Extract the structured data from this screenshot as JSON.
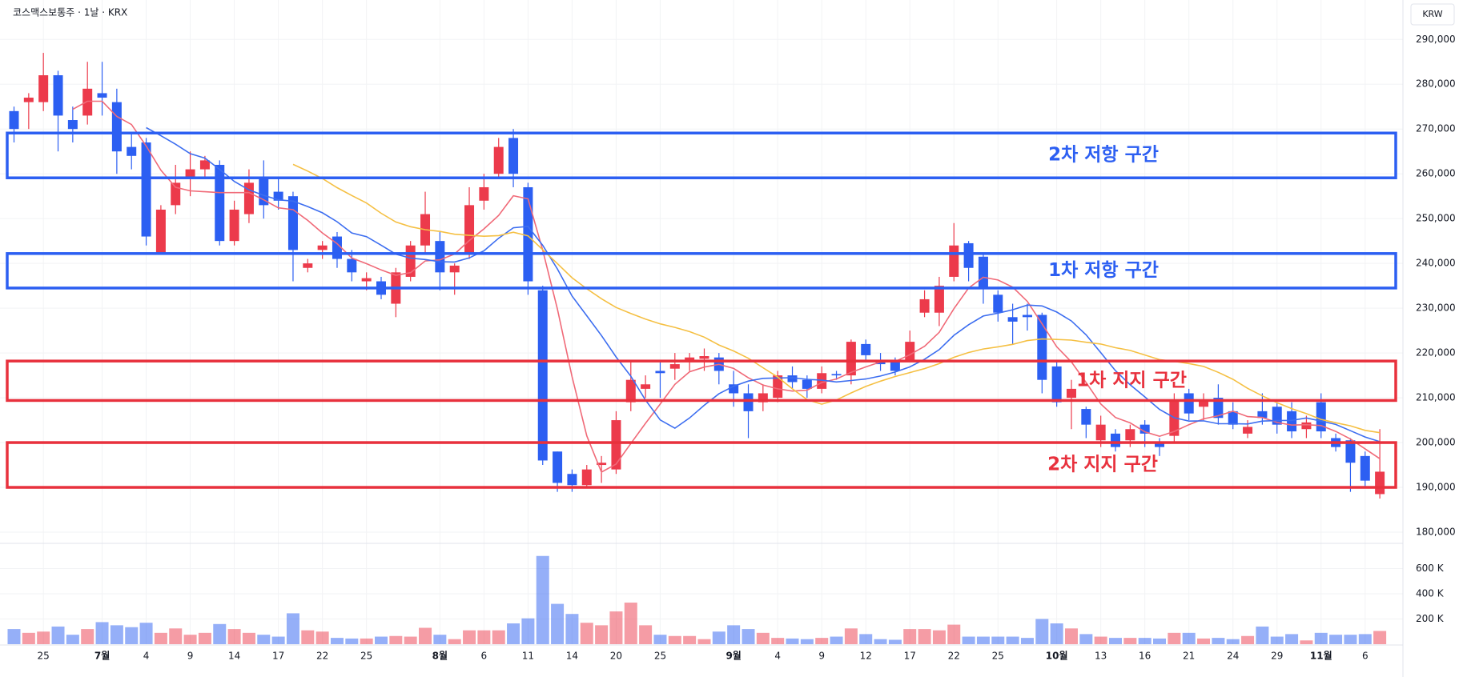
{
  "chart_data": {
    "type": "candlestick",
    "title": "코스맥스보통주 · 1날 · KRX",
    "currency": "KRW",
    "up_color": "#ec3a4b",
    "down_color": "#2c5ff2",
    "grid": true,
    "categories": [
      null,
      null,
      "25",
      null,
      null,
      null,
      "7월",
      null,
      null,
      "4",
      null,
      null,
      "9",
      null,
      null,
      "14",
      null,
      null,
      "17",
      null,
      null,
      "22",
      null,
      null,
      "25",
      null,
      null,
      null,
      null,
      "8월",
      null,
      null,
      "6",
      null,
      null,
      "11",
      null,
      null,
      "14",
      null,
      null,
      "20",
      null,
      null,
      "25",
      null,
      null,
      null,
      null,
      "9월",
      null,
      null,
      "4",
      null,
      null,
      "9",
      null,
      null,
      "12",
      null,
      null,
      "17",
      null,
      null,
      "22",
      null,
      null,
      "25",
      null,
      null,
      null,
      "10월",
      null,
      null,
      "13",
      null,
      null,
      "16",
      null,
      null,
      "21",
      null,
      null,
      "24",
      null,
      null,
      "29",
      null,
      null,
      "11월",
      null,
      null,
      "6",
      null
    ],
    "open": [
      274000,
      276000,
      276000,
      282000,
      272000,
      273000,
      278000,
      276000,
      266000,
      267000,
      242000,
      253000,
      259000,
      261000,
      262000,
      245000,
      251000,
      259000,
      256000,
      255000,
      239000,
      243000,
      246000,
      241000,
      236000,
      236000,
      231000,
      237000,
      244000,
      245000,
      238000,
      242000,
      254000,
      260000,
      268000,
      257000,
      234000,
      198000,
      193000,
      190500,
      195000,
      194000,
      209000,
      212000,
      216000,
      216500,
      218500,
      218700,
      219000,
      213000,
      211000,
      209000,
      210000,
      215000,
      214000,
      212000,
      215300,
      215000,
      222000,
      218500,
      218000,
      218500,
      229000,
      229000,
      237000,
      244500,
      241500,
      233000,
      228000,
      228500,
      228500,
      217000,
      210000,
      207500,
      200500,
      202000,
      200500,
      204000,
      200000,
      201500,
      211000,
      208000,
      210000,
      207000,
      202000,
      207000,
      208000,
      207000,
      203000,
      209000,
      201000,
      200500,
      197000,
      188500
    ],
    "high": [
      275000,
      278000,
      287000,
      283000,
      275000,
      285000,
      285000,
      279000,
      269000,
      268000,
      253000,
      262000,
      265000,
      264000,
      263000,
      254000,
      261000,
      263000,
      259000,
      256000,
      241000,
      245000,
      247000,
      243000,
      238000,
      237000,
      239000,
      245000,
      256000,
      247000,
      240000,
      257000,
      260000,
      268000,
      270000,
      258000,
      235000,
      198000,
      194000,
      195000,
      197000,
      207000,
      218000,
      215000,
      218000,
      220000,
      220000,
      221000,
      220000,
      216000,
      213000,
      213000,
      216000,
      217000,
      215000,
      217000,
      216000,
      223000,
      223000,
      220000,
      219000,
      225000,
      234000,
      237000,
      249000,
      245000,
      242000,
      234000,
      231000,
      231000,
      229000,
      218000,
      214000,
      208000,
      206000,
      203000,
      204000,
      205000,
      201000,
      211000,
      212000,
      211000,
      213000,
      209000,
      205000,
      211000,
      209000,
      209000,
      206000,
      211000,
      202000,
      201000,
      198000,
      203000
    ],
    "low": [
      267000,
      270000,
      274000,
      265000,
      267000,
      271000,
      273000,
      260000,
      261000,
      244000,
      242000,
      251000,
      255000,
      259000,
      244000,
      244000,
      249000,
      250000,
      252000,
      236000,
      238000,
      241000,
      239000,
      236000,
      234000,
      232000,
      228000,
      236000,
      242000,
      234000,
      233000,
      241000,
      252000,
      259000,
      257000,
      233000,
      195000,
      189000,
      189000,
      190000,
      191000,
      193000,
      207000,
      210000,
      210000,
      214000,
      216000,
      216000,
      213000,
      208000,
      201000,
      207000,
      209000,
      212000,
      210000,
      211000,
      214000,
      213000,
      218000,
      216000,
      215000,
      218000,
      228000,
      226000,
      236000,
      236000,
      231000,
      227000,
      222000,
      225000,
      211000,
      208000,
      203000,
      201000,
      199000,
      198000,
      199000,
      199000,
      197000,
      200000,
      205000,
      205000,
      204000,
      203000,
      201000,
      204000,
      202000,
      201000,
      201000,
      201000,
      198000,
      189000,
      190000,
      187500
    ],
    "close": [
      270000,
      277000,
      282000,
      273000,
      270000,
      279000,
      277000,
      265000,
      264000,
      246000,
      252000,
      258000,
      261000,
      263000,
      245000,
      252000,
      258000,
      253000,
      254000,
      243000,
      240000,
      244000,
      241000,
      238000,
      236700,
      233000,
      238000,
      244000,
      251000,
      238000,
      239500,
      253000,
      257000,
      266000,
      260000,
      236000,
      196000,
      191000,
      190500,
      194000,
      195500,
      205000,
      214000,
      213000,
      215500,
      217500,
      219000,
      219300,
      216000,
      211000,
      207000,
      211000,
      215000,
      213500,
      212000,
      215500,
      215000,
      222500,
      219500,
      217500,
      216000,
      222500,
      232000,
      235000,
      244000,
      239000,
      234500,
      229000,
      227000,
      228000,
      214000,
      209000,
      212000,
      204000,
      204000,
      199000,
      203000,
      202000,
      199000,
      209500,
      206500,
      209500,
      205500,
      204000,
      203500,
      205500,
      204000,
      202500,
      204500,
      202500,
      199000,
      195500,
      191500,
      193500
    ],
    "volume": [
      120000,
      90000,
      100000,
      140000,
      75000,
      120000,
      175000,
      150000,
      135000,
      170000,
      90000,
      125000,
      75000,
      90000,
      160000,
      120000,
      90000,
      75000,
      60000,
      245000,
      110000,
      100000,
      50000,
      45000,
      45000,
      60000,
      65000,
      60000,
      130000,
      75000,
      40000,
      110000,
      110000,
      110000,
      165000,
      205000,
      700000,
      320000,
      240000,
      170000,
      150000,
      260000,
      330000,
      150000,
      75000,
      65000,
      65000,
      40000,
      100000,
      150000,
      120000,
      90000,
      50000,
      45000,
      40000,
      50000,
      60000,
      125000,
      80000,
      40000,
      35000,
      120000,
      120000,
      110000,
      155000,
      60000,
      60000,
      60000,
      60000,
      50000,
      200000,
      165000,
      125000,
      80000,
      60000,
      50000,
      50000,
      50000,
      45000,
      90000,
      90000,
      45000,
      50000,
      40000,
      65000,
      140000,
      60000,
      80000,
      30000,
      90000,
      75000,
      75000,
      80000,
      105000
    ],
    "ylim": [
      177500,
      298800
    ],
    "yticks": [
      {
        "value": 180000,
        "label": "180,000"
      },
      {
        "value": 190000,
        "label": "190,000"
      },
      {
        "value": 200000,
        "label": "200,000"
      },
      {
        "value": 210000,
        "label": "210,000"
      },
      {
        "value": 220000,
        "label": "220,000"
      },
      {
        "value": 230000,
        "label": "230,000"
      },
      {
        "value": 240000,
        "label": "240,000"
      },
      {
        "value": 250000,
        "label": "250,000"
      },
      {
        "value": 260000,
        "label": "260,000"
      },
      {
        "value": 270000,
        "label": "270,000"
      },
      {
        "value": 280000,
        "label": "280,000"
      },
      {
        "value": 290000,
        "label": "290,000"
      }
    ],
    "volume_lim": [
      0,
      800000
    ],
    "volume_ticks": [
      {
        "value": 200000,
        "label": "200 K"
      },
      {
        "value": 400000,
        "label": "400 K"
      },
      {
        "value": 600000,
        "label": "600 K"
      }
    ],
    "zones": [
      {
        "label": "2차 저항 구간",
        "low": 259100,
        "high": 269100,
        "color": "#2c5ff2"
      },
      {
        "label": "1차 저항 구간",
        "low": 234500,
        "high": 242200,
        "color": "#2c5ff2"
      },
      {
        "label": "1차 지지 구간",
        "low": 209400,
        "high": 218200,
        "color": "#e8313d"
      },
      {
        "label": "2차 지지 구간",
        "low": 190000,
        "high": 200000,
        "color": "#e8313d"
      }
    ]
  }
}
